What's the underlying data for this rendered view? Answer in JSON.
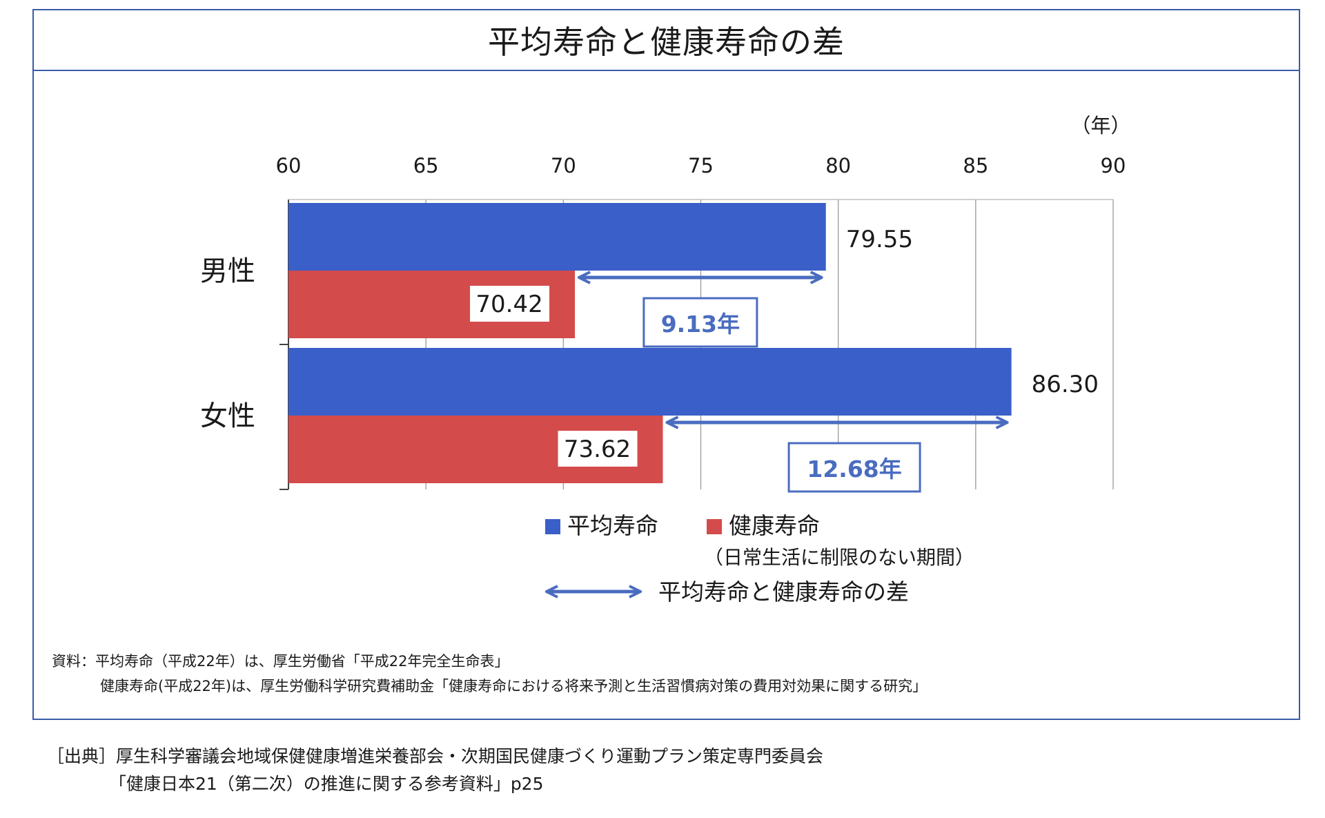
{
  "title": "平均寿命と健康寿命の差",
  "chart_data": {
    "type": "bar",
    "orientation": "horizontal",
    "unit_label": "（年）",
    "xlim": [
      60,
      90
    ],
    "ticks": [
      "60",
      "65",
      "70",
      "75",
      "80",
      "85",
      "90"
    ],
    "categories": [
      "男性",
      "女性"
    ],
    "series": [
      {
        "name": "平均寿命",
        "color": "#3a5fc8",
        "values": [
          79.55,
          86.3
        ],
        "labels": [
          "79.55",
          "86.30"
        ]
      },
      {
        "name": "健康寿命",
        "color": "#d44b4b",
        "values": [
          70.42,
          73.62
        ],
        "labels": [
          "70.42",
          "73.62"
        ]
      }
    ],
    "differences": [
      {
        "category": "男性",
        "label": "9.13年"
      },
      {
        "category": "女性",
        "label": "12.68年"
      }
    ],
    "grid": true,
    "legend": {
      "items": [
        {
          "label": "平均寿命",
          "color": "#3a5fc8"
        },
        {
          "label": "健康寿命",
          "color": "#d44b4b"
        }
      ],
      "note": "（日常生活に制限のない期間）",
      "arrow_label": "平均寿命と健康寿命の差",
      "arrow_color": "#4a6cc0"
    }
  },
  "source": {
    "line1": "資料：平均寿命（平成22年）は、厚生労働省「平成22年完全生命表」",
    "line2": "健康寿命(平成22年)は、厚生労働科学研究費補助金「健康寿命における将来予測と生活習慣病対策の費用対効果に関する研究」"
  },
  "citation": {
    "line1": "［出典］厚生科学審議会地域保健健康増進栄養部会・次期国民健康づくり運動プラン策定専門委員会",
    "line2": "「健康日本21（第二次）の推進に関する参考資料」p25"
  }
}
